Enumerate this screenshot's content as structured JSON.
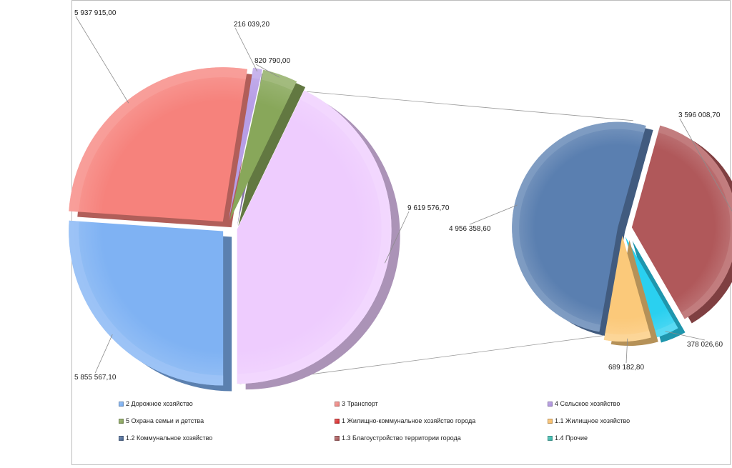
{
  "chart_data": {
    "type": "pie",
    "variant": "pie-of-pie (exploded, 3D)",
    "title": "",
    "main_pie": {
      "slices": [
        {
          "name": "2 Дорожное хозяйство",
          "value": 5855567.1,
          "label": "5 855 567,10",
          "color": "#7fb2f3"
        },
        {
          "name": "3 Транспорт",
          "value": 5937915.0,
          "label": "5 937 915,00",
          "color": "#f6827c"
        },
        {
          "name": "4 Сельское хозяйство",
          "value": 216039.2,
          "label": "216 039,20",
          "color": "#b79ee6"
        },
        {
          "name": "5 Охрана семьи и детства",
          "value": 820790.0,
          "label": "820 790,00",
          "color": "#88a75a"
        },
        {
          "name": "1 Жилищно-коммунальное  хозяйство города",
          "value": 9619576.7,
          "label": "9 619 576,70",
          "color": "#eeccfe"
        }
      ]
    },
    "secondary_pie": {
      "parent": "1 Жилищно-коммунальное  хозяйство города",
      "slices": [
        {
          "name": "1.2 Коммунальное хозяйство",
          "value": 4956358.6,
          "label": "4 956 358,60",
          "color": "#5a7fb0"
        },
        {
          "name": "1.3 Благоустройство территории города",
          "value": 3596008.7,
          "label": "3 596 008,70",
          "color": "#b0585a"
        },
        {
          "name": "1.4 Прочие",
          "value": 378026.6,
          "label": "378 026,60",
          "color": "#2ad0f0"
        },
        {
          "name": "1.1 Жилищное хозяйство",
          "value": 689182.8,
          "label": "689 182,80",
          "color": "#fbc97a"
        }
      ]
    },
    "legend_position": "bottom",
    "legend": [
      {
        "label": "2 Дорожное хозяйство",
        "color": "#6fa8ef"
      },
      {
        "label": "3 Транспорт",
        "color": "#ec7b76"
      },
      {
        "label": "4 Сельское хозяйство",
        "color": "#a888dc"
      },
      {
        "label": "5 Охрана семьи и детства",
        "color": "#7f9d4f"
      },
      {
        "label": "1 Жилищно-коммунальное  хозяйство города",
        "color": "#d62020"
      },
      {
        "label": "1.1 Жилищное хозяйство",
        "color": "#f8b85c"
      },
      {
        "label": "1.2 Коммунальное хозяйство",
        "color": "#3f5f8f"
      },
      {
        "label": "1.3 Благоустройство территории города",
        "color": "#a24c4e"
      },
      {
        "label": "1.4 Прочие",
        "color": "#2ab3a5"
      }
    ]
  }
}
